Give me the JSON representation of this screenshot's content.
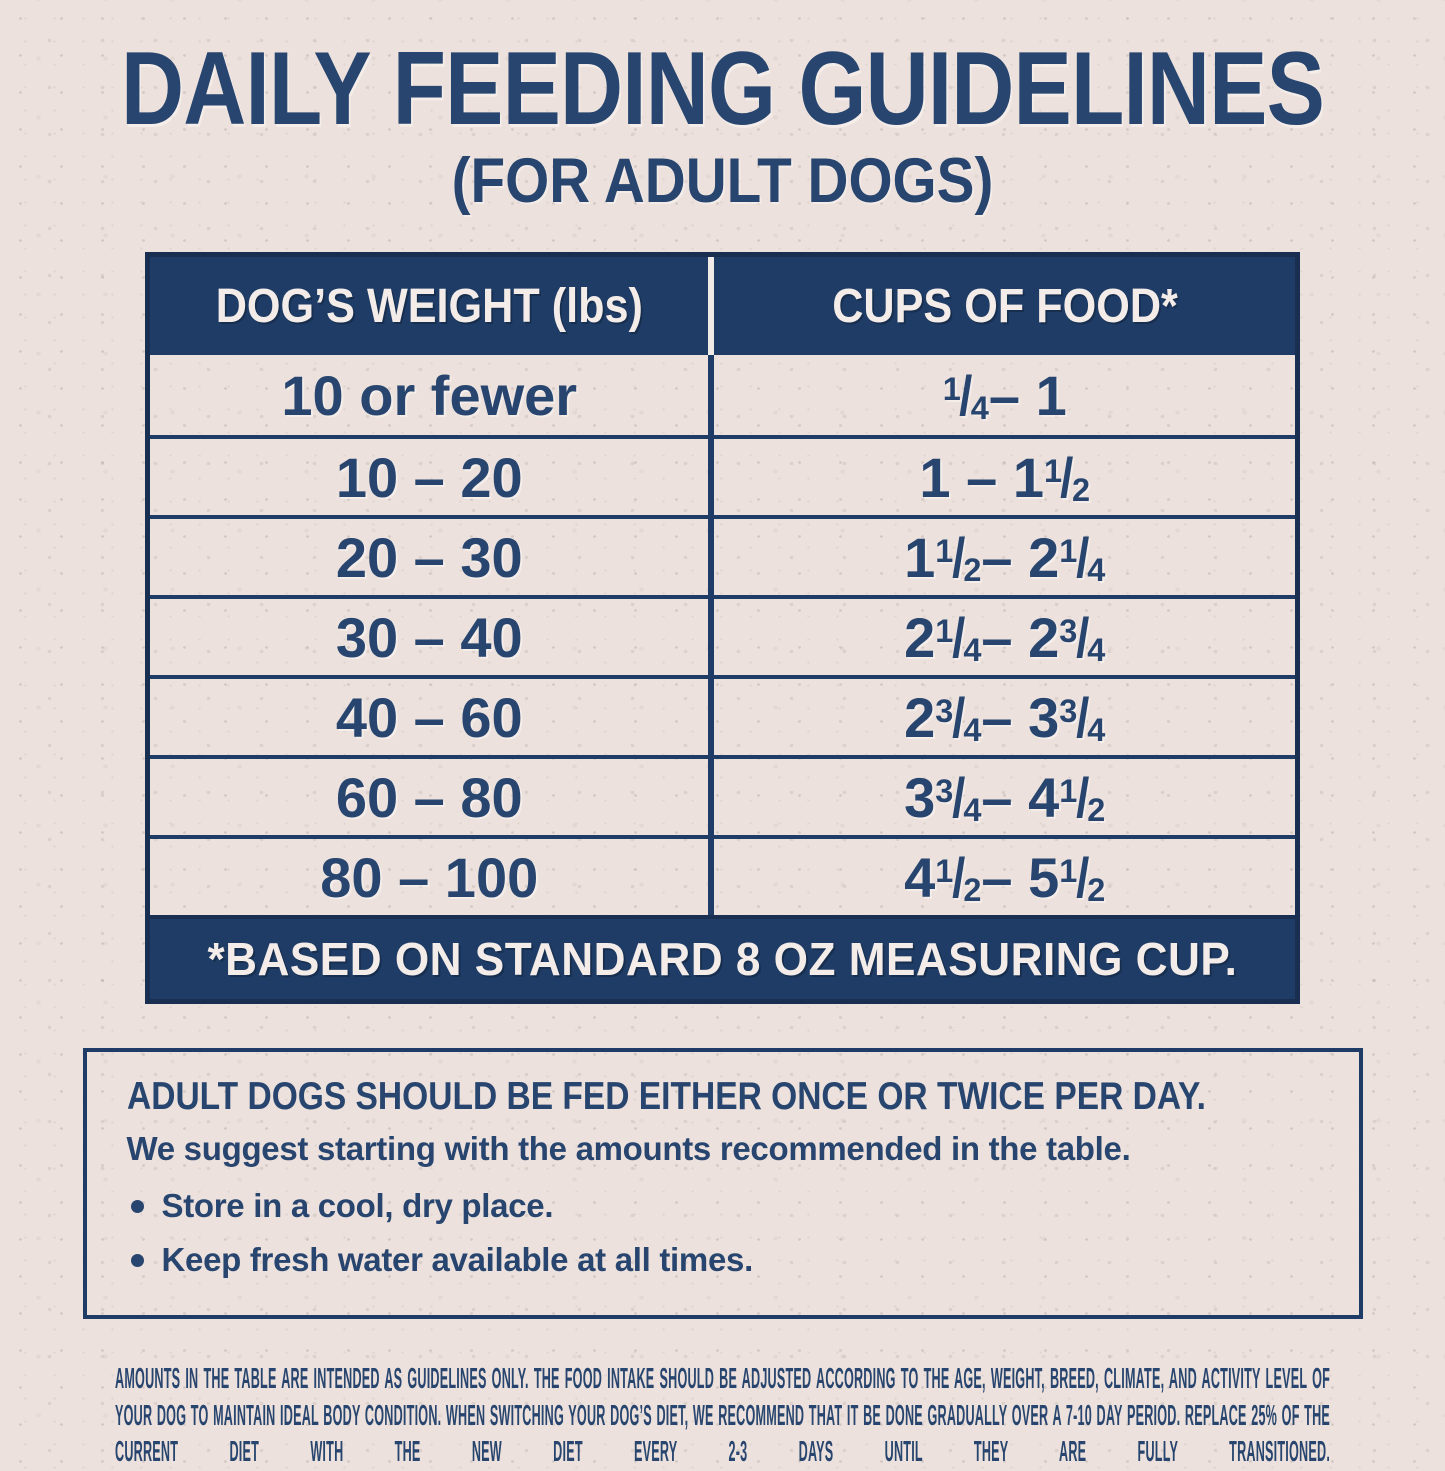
{
  "title": "DAILY FEEDING GUIDELINES",
  "subtitle": "(FOR ADULT DOGS)",
  "colors": {
    "navy": "#1e3c66",
    "navy_deep": "#192f52",
    "ink": "#27456e",
    "background": "#ece1dc",
    "text_light": "#f3ece8"
  },
  "table": {
    "columns": [
      "DOG’S WEIGHT (lbs)",
      "CUPS OF FOOD*"
    ],
    "rows": [
      {
        "weight": "10 or fewer",
        "cups": "1/4 – 1"
      },
      {
        "weight": "10 – 20",
        "cups": "1 – 1 1/2"
      },
      {
        "weight": "20 – 30",
        "cups": "1 1/2 – 2 1/4"
      },
      {
        "weight": "30 – 40",
        "cups": "2 1/4 – 2 3/4"
      },
      {
        "weight": "40 – 60",
        "cups": "2 3/4 – 3 3/4"
      },
      {
        "weight": "60 – 80",
        "cups": "3 3/4 – 4 1/2"
      },
      {
        "weight": "80 – 100",
        "cups": "4 1/2 – 5 1/2"
      }
    ],
    "footnote": "*BASED ON STANDARD 8 OZ MEASURING CUP."
  },
  "info_box": {
    "heading": "ADULT DOGS SHOULD BE FED EITHER ONCE OR TWICE PER DAY.",
    "subheading": "We suggest starting with the amounts recommended in the table.",
    "bullets": [
      "Store in a cool, dry place.",
      "Keep fresh water available at all times."
    ]
  },
  "fine_print": "AMOUNTS IN THE TABLE ARE INTENDED AS GUIDELINES ONLY. THE FOOD INTAKE SHOULD BE ADJUSTED ACCORDING TO THE AGE, WEIGHT, BREED, CLIMATE, AND ACTIVITY LEVEL OF YOUR DOG TO MAINTAIN IDEAL BODY CONDITION. WHEN SWITCHING YOUR DOG’S DIET, WE RECOMMEND THAT IT BE DONE GRADUALLY OVER A 7-10 DAY PERIOD. REPLACE 25% OF THE CURRENT DIET WITH THE NEW DIET EVERY 2-3 DAYS UNTIL THEY ARE FULLY TRANSITIONED."
}
